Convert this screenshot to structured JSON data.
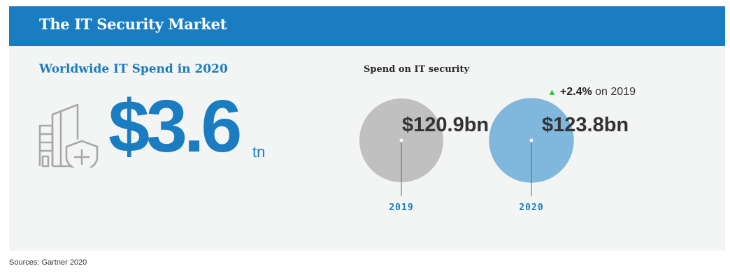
{
  "header": {
    "title": "The IT Security Market"
  },
  "left": {
    "title": "Worldwide IT Spend in 2020",
    "value": "$3.6",
    "unit": "tn",
    "icon": "building-shield-icon"
  },
  "right": {
    "title": "Spend on IT security",
    "change_pct": "+2.4%",
    "change_suffix": "on 2019"
  },
  "chart_data": {
    "type": "bubble",
    "title": "Spend on IT security",
    "categories": [
      "2019",
      "2020"
    ],
    "values": [
      120.9,
      123.8
    ],
    "value_labels": [
      "$120.9bn",
      "$123.8bn"
    ],
    "unit": "bn USD",
    "colors": [
      "#c0c0c0",
      "#7fb8dc"
    ],
    "label_color": "#1a7dc2"
  },
  "source": "Sources: Gartner 2020"
}
